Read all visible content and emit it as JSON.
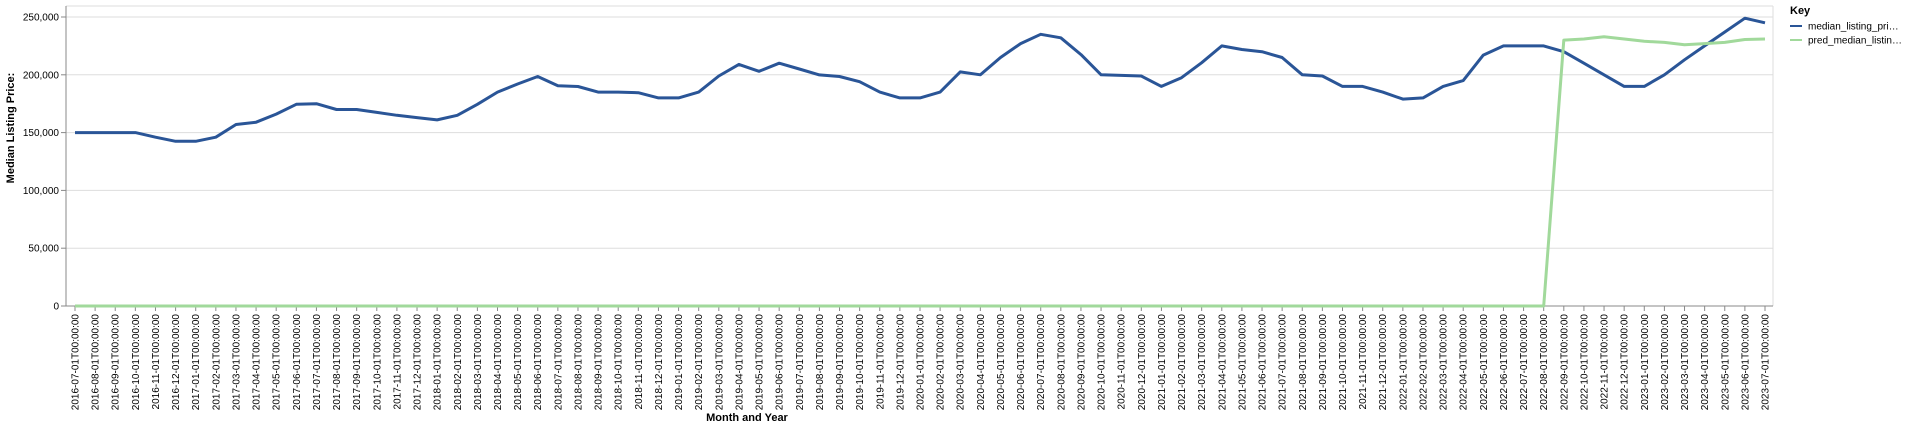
{
  "chart_data": {
    "type": "line",
    "xlabel": "Month and Year",
    "ylabel": "Median Listing Price:",
    "legend_title": "Key",
    "legend_position": "right",
    "grid": true,
    "categories": [
      "2016-07-01T00:00:00",
      "2016-08-01T00:00:00",
      "2016-09-01T00:00:00",
      "2016-10-01T00:00:00",
      "2016-11-01T00:00:00",
      "2016-12-01T00:00:00",
      "2017-01-01T00:00:00",
      "2017-02-01T00:00:00",
      "2017-03-01T00:00:00",
      "2017-04-01T00:00:00",
      "2017-05-01T00:00:00",
      "2017-06-01T00:00:00",
      "2017-07-01T00:00:00",
      "2017-08-01T00:00:00",
      "2017-09-01T00:00:00",
      "2017-10-01T00:00:00",
      "2017-11-01T00:00:00",
      "2017-12-01T00:00:00",
      "2018-01-01T00:00:00",
      "2018-02-01T00:00:00",
      "2018-03-01T00:00:00",
      "2018-04-01T00:00:00",
      "2018-05-01T00:00:00",
      "2018-06-01T00:00:00",
      "2018-07-01T00:00:00",
      "2018-08-01T00:00:00",
      "2018-09-01T00:00:00",
      "2018-10-01T00:00:00",
      "2018-11-01T00:00:00",
      "2018-12-01T00:00:00",
      "2019-01-01T00:00:00",
      "2019-02-01T00:00:00",
      "2019-03-01T00:00:00",
      "2019-04-01T00:00:00",
      "2019-05-01T00:00:00",
      "2019-06-01T00:00:00",
      "2019-07-01T00:00:00",
      "2019-08-01T00:00:00",
      "2019-09-01T00:00:00",
      "2019-10-01T00:00:00",
      "2019-11-01T00:00:00",
      "2019-12-01T00:00:00",
      "2020-01-01T00:00:00",
      "2020-02-01T00:00:00",
      "2020-03-01T00:00:00",
      "2020-04-01T00:00:00",
      "2020-05-01T00:00:00",
      "2020-06-01T00:00:00",
      "2020-07-01T00:00:00",
      "2020-08-01T00:00:00",
      "2020-09-01T00:00:00",
      "2020-10-01T00:00:00",
      "2020-11-01T00:00:00",
      "2020-12-01T00:00:00",
      "2021-01-01T00:00:00",
      "2021-02-01T00:00:00",
      "2021-03-01T00:00:00",
      "2021-04-01T00:00:00",
      "2021-05-01T00:00:00",
      "2021-06-01T00:00:00",
      "2021-07-01T00:00:00",
      "2021-08-01T00:00:00",
      "2021-09-01T00:00:00",
      "2021-10-01T00:00:00",
      "2021-11-01T00:00:00",
      "2021-12-01T00:00:00",
      "2022-01-01T00:00:00",
      "2022-02-01T00:00:00",
      "2022-03-01T00:00:00",
      "2022-04-01T00:00:00",
      "2022-05-01T00:00:00",
      "2022-06-01T00:00:00",
      "2022-07-01T00:00:00",
      "2022-08-01T00:00:00",
      "2022-09-01T00:00:00",
      "2022-10-01T00:00:00",
      "2022-11-01T00:00:00",
      "2022-12-01T00:00:00",
      "2023-01-01T00:00:00",
      "2023-02-01T00:00:00",
      "2023-03-01T00:00:00",
      "2023-04-01T00:00:00",
      "2023-05-01T00:00:00",
      "2023-06-01T00:00:00",
      "2023-07-01T00:00:00"
    ],
    "series": [
      {
        "name": "median_listing_pri…",
        "color": "#2a5597",
        "values": [
          150000,
          150000,
          150000,
          150000,
          146000,
          142500,
          142500,
          146000,
          157000,
          159000,
          166000,
          174500,
          175000,
          170000,
          170000,
          167500,
          165000,
          163000,
          161000,
          165000,
          174500,
          185000,
          192000,
          198500,
          190500,
          189900,
          185000,
          185000,
          184500,
          180000,
          180000,
          185000,
          199000,
          209000,
          203000,
          210000,
          205000,
          199900,
          198500,
          194000,
          185000,
          180000,
          180000,
          185000,
          202500,
          200000,
          215000,
          227000,
          235000,
          232000,
          217500,
          200000,
          199500,
          199000,
          190000,
          197500,
          210500,
          225000,
          221900,
          220000,
          215000,
          200000,
          199000,
          190000,
          190000,
          185000,
          179000,
          180000,
          190000,
          195000,
          217000,
          225000,
          225000,
          225000,
          220000,
          210000,
          200000,
          190000,
          190000,
          200000,
          213000,
          225000,
          237000,
          249000,
          245000
        ]
      },
      {
        "name": "pred_median_listin…",
        "color": "#a1d99b",
        "values": [
          0,
          0,
          0,
          0,
          0,
          0,
          0,
          0,
          0,
          0,
          0,
          0,
          0,
          0,
          0,
          0,
          0,
          0,
          0,
          0,
          0,
          0,
          0,
          0,
          0,
          0,
          0,
          0,
          0,
          0,
          0,
          0,
          0,
          0,
          0,
          0,
          0,
          0,
          0,
          0,
          0,
          0,
          0,
          0,
          0,
          0,
          0,
          0,
          0,
          0,
          0,
          0,
          0,
          0,
          0,
          0,
          0,
          0,
          0,
          0,
          0,
          0,
          0,
          0,
          0,
          0,
          0,
          0,
          0,
          0,
          0,
          0,
          0,
          0,
          230000,
          231000,
          233000,
          231000,
          229000,
          228000,
          226000,
          227000,
          228000,
          230500,
          231000
        ]
      }
    ],
    "ylim": [
      0,
      250000
    ],
    "yticks": [
      0,
      {
        "value": 50000,
        "label": "50,000"
      },
      {
        "value": 100000,
        "label": "100,000"
      },
      {
        "value": 150000,
        "label": "150,000"
      },
      {
        "value": 200000,
        "label": "200,000"
      },
      {
        "value": 250000,
        "label": "250,000"
      }
    ]
  }
}
